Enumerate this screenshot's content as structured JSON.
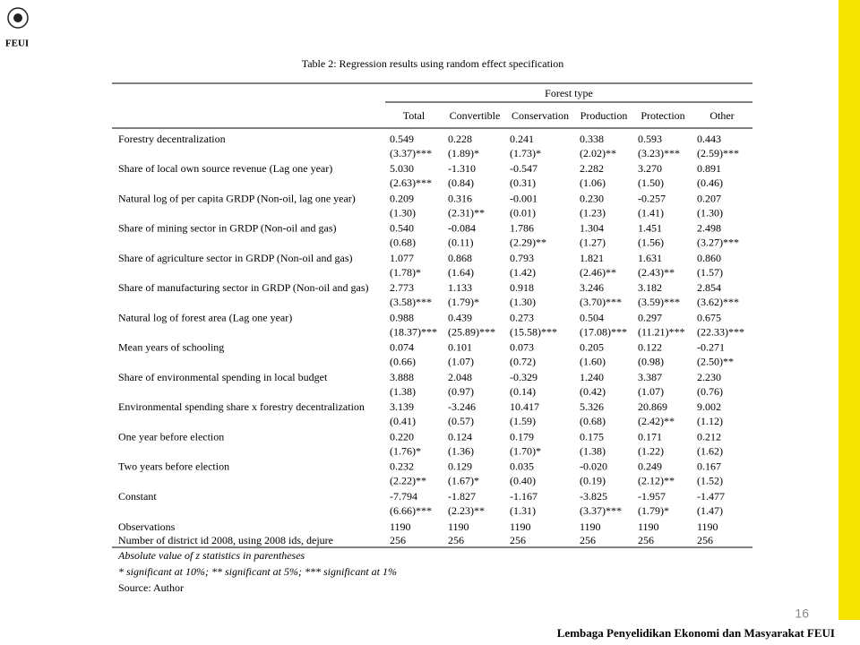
{
  "logo": "FEUI",
  "table": {
    "title": "Table 2: Regression results using random effect specification",
    "group_header": "Forest type",
    "columns": [
      "Total",
      "Convertible",
      "Conservation",
      "Production",
      "Protection",
      "Other"
    ],
    "rows": [
      {
        "label": "Forestry decentralization",
        "coef": [
          "0.549",
          "0.228",
          "0.241",
          "0.338",
          "0.593",
          "0.443"
        ],
        "z": [
          "(3.37)***",
          "(1.89)*",
          "(1.73)*",
          "(2.02)**",
          "(3.23)***",
          "(2.59)***"
        ]
      },
      {
        "label": "Share of local own source revenue (Lag one year)",
        "coef": [
          "5.030",
          "-1.310",
          "-0.547",
          "2.282",
          "3.270",
          "0.891"
        ],
        "z": [
          "(2.63)***",
          "(0.84)",
          "(0.31)",
          "(1.06)",
          "(1.50)",
          "(0.46)"
        ]
      },
      {
        "label": "Natural log of per capita GRDP (Non-oil, lag one year)",
        "coef": [
          "0.209",
          "0.316",
          "-0.001",
          "0.230",
          "-0.257",
          "0.207"
        ],
        "z": [
          "(1.30)",
          "(2.31)**",
          "(0.01)",
          "(1.23)",
          "(1.41)",
          "(1.30)"
        ]
      },
      {
        "label": "Share of mining sector in GRDP (Non-oil and gas)",
        "coef": [
          "0.540",
          "-0.084",
          "1.786",
          "1.304",
          "1.451",
          "2.498"
        ],
        "z": [
          "(0.68)",
          "(0.11)",
          "(2.29)**",
          "(1.27)",
          "(1.56)",
          "(3.27)***"
        ]
      },
      {
        "label": "Share of agriculture sector in GRDP (Non-oil and gas)",
        "coef": [
          "1.077",
          "0.868",
          "0.793",
          "1.821",
          "1.631",
          "0.860"
        ],
        "z": [
          "(1.78)*",
          "(1.64)",
          "(1.42)",
          "(2.46)**",
          "(2.43)**",
          "(1.57)"
        ]
      },
      {
        "label": "Share of manufacturing sector in GRDP (Non-oil and gas)",
        "coef": [
          "2.773",
          "1.133",
          "0.918",
          "3.246",
          "3.182",
          "2.854"
        ],
        "z": [
          "(3.58)***",
          "(1.79)*",
          "(1.30)",
          "(3.70)***",
          "(3.59)***",
          "(3.62)***"
        ]
      },
      {
        "label": "Natural log of forest area (Lag one year)",
        "coef": [
          "0.988",
          "0.439",
          "0.273",
          "0.504",
          "0.297",
          "0.675"
        ],
        "z": [
          "(18.37)***",
          "(25.89)***",
          "(15.58)***",
          "(17.08)***",
          "(11.21)***",
          "(22.33)***"
        ]
      },
      {
        "label": "Mean years of schooling",
        "coef": [
          "0.074",
          "0.101",
          "0.073",
          "0.205",
          "0.122",
          "-0.271"
        ],
        "z": [
          "(0.66)",
          "(1.07)",
          "(0.72)",
          "(1.60)",
          "(0.98)",
          "(2.50)**"
        ]
      },
      {
        "label": "Share of environmental spending in local budget",
        "coef": [
          "3.888",
          "2.048",
          "-0.329",
          "1.240",
          "3.387",
          "2.230"
        ],
        "z": [
          "(1.38)",
          "(0.97)",
          "(0.14)",
          "(0.42)",
          "(1.07)",
          "(0.76)"
        ]
      },
      {
        "label": "Environmental spending share x forestry decentralization",
        "coef": [
          "3.139",
          "-3.246",
          "10.417",
          "5.326",
          "20.869",
          "9.002"
        ],
        "z": [
          "(0.41)",
          "(0.57)",
          "(1.59)",
          "(0.68)",
          "(2.42)**",
          "(1.12)"
        ]
      },
      {
        "label": "One year before election",
        "coef": [
          "0.220",
          "0.124",
          "0.179",
          "0.175",
          "0.171",
          "0.212"
        ],
        "z": [
          "(1.76)*",
          "(1.36)",
          "(1.70)*",
          "(1.38)",
          "(1.22)",
          "(1.62)"
        ]
      },
      {
        "label": "Two years before election",
        "coef": [
          "0.232",
          "0.129",
          "0.035",
          "-0.020",
          "0.249",
          "0.167"
        ],
        "z": [
          "(2.22)**",
          "(1.67)*",
          "(0.40)",
          "(0.19)",
          "(2.12)**",
          "(1.52)"
        ]
      },
      {
        "label": "Constant",
        "coef": [
          "-7.794",
          "-1.827",
          "-1.167",
          "-3.825",
          "-1.957",
          "-1.477"
        ],
        "z": [
          "(6.66)***",
          "(2.23)**",
          "(1.31)",
          "(3.37)***",
          "(1.79)*",
          "(1.47)"
        ]
      }
    ],
    "summary_rows": [
      {
        "label": "Observations",
        "values": [
          "1190",
          "1190",
          "1190",
          "1190",
          "1190",
          "1190"
        ]
      },
      {
        "label": "Number of district id 2008, using 2008 ids, dejure",
        "values": [
          "256",
          "256",
          "256",
          "256",
          "256",
          "256"
        ]
      }
    ],
    "notes": [
      "Absolute value of z statistics in parentheses",
      "* significant at 10%; ** significant at 5%; *** significant at 1%",
      "Source: Author"
    ]
  },
  "page_number": "16",
  "footer": "Lembaga Penyelidikan Ekonomi dan Masyarakat FEUI"
}
